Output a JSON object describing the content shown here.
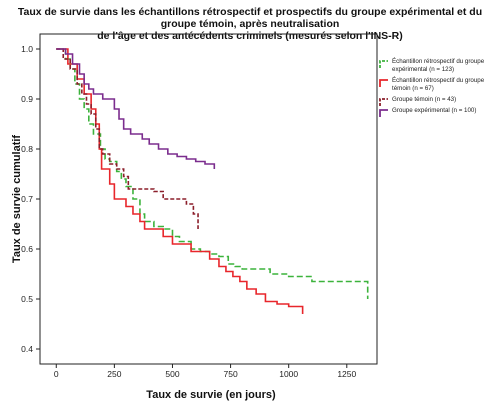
{
  "chart_data": {
    "type": "line",
    "title_lines": [
      "Taux de survie dans les échantillons rétrospectif et prospectifs du groupe expérimental et du groupe témoin, après neutralisation",
      "de l'âge et des antécédents criminels (mesurés selon l'INS-R)"
    ],
    "xlabel": "Taux de survie (en jours)",
    "ylabel": "Taux de survie cumulatif",
    "xlim": [
      -70,
      1380
    ],
    "ylim": [
      0.37,
      1.03
    ],
    "x_ticks": [
      0,
      250,
      500,
      750,
      1000,
      1250
    ],
    "y_ticks": [
      0.4,
      0.5,
      0.6,
      0.7,
      0.8,
      0.9,
      1.0
    ],
    "y_tick_labels": [
      "0.4",
      "0.5",
      "0.6",
      "0.7",
      "0.8",
      "0.9",
      "1.0"
    ],
    "legend_position": "right",
    "series": [
      {
        "legend_lines": [
          "Échantillon rétrospectif du groupe",
          "expérimental (n = 123)"
        ],
        "color": "#3cb33c",
        "dash": "6,3",
        "points": [
          [
            0,
            1.0
          ],
          [
            40,
            0.98
          ],
          [
            60,
            0.96
          ],
          [
            80,
            0.93
          ],
          [
            100,
            0.9
          ],
          [
            120,
            0.88
          ],
          [
            140,
            0.85
          ],
          [
            160,
            0.83
          ],
          [
            190,
            0.8
          ],
          [
            210,
            0.78
          ],
          [
            230,
            0.775
          ],
          [
            260,
            0.755
          ],
          [
            280,
            0.74
          ],
          [
            300,
            0.725
          ],
          [
            330,
            0.7
          ],
          [
            360,
            0.67
          ],
          [
            380,
            0.655
          ],
          [
            420,
            0.645
          ],
          [
            460,
            0.64
          ],
          [
            500,
            0.625
          ],
          [
            530,
            0.615
          ],
          [
            580,
            0.6
          ],
          [
            620,
            0.595
          ],
          [
            660,
            0.59
          ],
          [
            700,
            0.585
          ],
          [
            740,
            0.57
          ],
          [
            770,
            0.565
          ],
          [
            800,
            0.56
          ],
          [
            880,
            0.56
          ],
          [
            920,
            0.55
          ],
          [
            1000,
            0.545
          ],
          [
            1100,
            0.535
          ],
          [
            1340,
            0.535
          ],
          [
            1340,
            0.5
          ]
        ]
      },
      {
        "legend_lines": [
          "Échantillon rétrospectif du groupe",
          "témoin (n = 67)"
        ],
        "color": "#e8262b",
        "dash": "",
        "points": [
          [
            0,
            1.0
          ],
          [
            50,
            0.97
          ],
          [
            90,
            0.94
          ],
          [
            120,
            0.91
          ],
          [
            150,
            0.88
          ],
          [
            170,
            0.85
          ],
          [
            185,
            0.8
          ],
          [
            195,
            0.76
          ],
          [
            210,
            0.76
          ],
          [
            230,
            0.73
          ],
          [
            250,
            0.7
          ],
          [
            280,
            0.7
          ],
          [
            300,
            0.685
          ],
          [
            330,
            0.67
          ],
          [
            360,
            0.655
          ],
          [
            380,
            0.64
          ],
          [
            420,
            0.64
          ],
          [
            460,
            0.625
          ],
          [
            500,
            0.61
          ],
          [
            540,
            0.61
          ],
          [
            580,
            0.595
          ],
          [
            620,
            0.595
          ],
          [
            660,
            0.58
          ],
          [
            700,
            0.565
          ],
          [
            730,
            0.555
          ],
          [
            760,
            0.545
          ],
          [
            790,
            0.535
          ],
          [
            820,
            0.52
          ],
          [
            860,
            0.51
          ],
          [
            900,
            0.495
          ],
          [
            950,
            0.49
          ],
          [
            1000,
            0.485
          ],
          [
            1060,
            0.485
          ],
          [
            1060,
            0.47
          ]
        ]
      },
      {
        "legend_lines": [
          "Groupe témoin (n = 43)"
        ],
        "color": "#8b1e2a",
        "dash": "4,2",
        "points": [
          [
            0,
            1.0
          ],
          [
            30,
            0.98
          ],
          [
            60,
            0.96
          ],
          [
            90,
            0.93
          ],
          [
            110,
            0.91
          ],
          [
            130,
            0.89
          ],
          [
            150,
            0.87
          ],
          [
            170,
            0.84
          ],
          [
            185,
            0.8
          ],
          [
            200,
            0.79
          ],
          [
            230,
            0.77
          ],
          [
            260,
            0.76
          ],
          [
            290,
            0.745
          ],
          [
            310,
            0.72
          ],
          [
            360,
            0.72
          ],
          [
            420,
            0.715
          ],
          [
            460,
            0.7
          ],
          [
            520,
            0.7
          ],
          [
            560,
            0.69
          ],
          [
            590,
            0.67
          ],
          [
            610,
            0.67
          ],
          [
            610,
            0.64
          ]
        ]
      },
      {
        "legend_lines": [
          "Groupe expérimental (n = 100)"
        ],
        "color": "#7b2d8e",
        "dash": "",
        "points": [
          [
            0,
            1.0
          ],
          [
            40,
            0.99
          ],
          [
            70,
            0.97
          ],
          [
            100,
            0.95
          ],
          [
            120,
            0.93
          ],
          [
            140,
            0.92
          ],
          [
            160,
            0.91
          ],
          [
            200,
            0.9
          ],
          [
            250,
            0.88
          ],
          [
            270,
            0.86
          ],
          [
            290,
            0.84
          ],
          [
            320,
            0.83
          ],
          [
            370,
            0.82
          ],
          [
            400,
            0.81
          ],
          [
            440,
            0.8
          ],
          [
            480,
            0.79
          ],
          [
            520,
            0.785
          ],
          [
            560,
            0.78
          ],
          [
            600,
            0.775
          ],
          [
            640,
            0.77
          ],
          [
            680,
            0.77
          ],
          [
            680,
            0.76
          ]
        ]
      }
    ]
  }
}
